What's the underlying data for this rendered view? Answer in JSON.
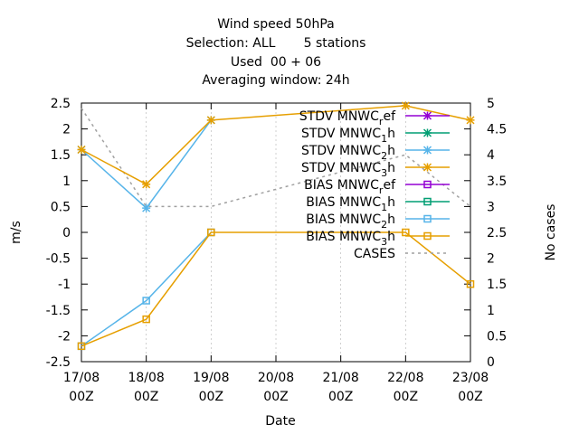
{
  "chart_data": {
    "type": "line",
    "title_lines": [
      "Wind speed 50hPa",
      "Selection: ALL       5 stations",
      "Used  00 + 06",
      "Averaging window: 24h"
    ],
    "xlabel": "Date",
    "ylabel": "m/s",
    "y2label": "No cases",
    "x": [
      [
        "17/08",
        "00Z"
      ],
      [
        "18/08",
        "00Z"
      ],
      [
        "19/08",
        "00Z"
      ],
      [
        "20/08",
        "00Z"
      ],
      [
        "21/08",
        "00Z"
      ],
      [
        "22/08",
        "00Z"
      ],
      [
        "23/08",
        "00Z"
      ]
    ],
    "ylim": [
      -2.5,
      2.5
    ],
    "y2lim": [
      0,
      5
    ],
    "yticks": [
      "-2.5",
      "-2",
      "-1.5",
      "-1",
      "-0.5",
      "0",
      "0.5",
      "1",
      "1.5",
      "2",
      "2.5"
    ],
    "y2ticks": [
      "0",
      "0.5",
      "1",
      "1.5",
      "2",
      "2.5",
      "3",
      "3.5",
      "4",
      "4.5",
      "5"
    ],
    "legend_position": "top-right",
    "series": [
      {
        "name": "STDV MNWC_ref",
        "label_parts": [
          "STDV MNWC",
          "r",
          "ef"
        ],
        "color": "#9400d3",
        "marker": "star",
        "dash": false,
        "axis": "y",
        "points": []
      },
      {
        "name": "STDV MNWC_1h",
        "label_parts": [
          "STDV MNWC",
          "1",
          "h"
        ],
        "color": "#009e73",
        "marker": "star",
        "dash": false,
        "axis": "y",
        "points": []
      },
      {
        "name": "STDV MNWC_2h",
        "label_parts": [
          "STDV MNWC",
          "2",
          "h"
        ],
        "color": "#56b4e9",
        "marker": "star",
        "dash": false,
        "axis": "y",
        "points": [
          [
            0,
            1.6
          ],
          [
            1,
            0.47
          ],
          [
            2,
            2.17
          ]
        ]
      },
      {
        "name": "STDV MNWC_3h",
        "label_parts": [
          "STDV MNWC",
          "3",
          "h"
        ],
        "color": "#e69f00",
        "marker": "star",
        "dash": false,
        "axis": "y",
        "points": [
          [
            0,
            1.6
          ],
          [
            1,
            0.93
          ],
          [
            2,
            2.17
          ],
          [
            5,
            2.45
          ],
          [
            6,
            2.17
          ]
        ]
      },
      {
        "name": "BIAS MNWC_ref",
        "label_parts": [
          "BIAS MNWC",
          "r",
          "ef"
        ],
        "color": "#9400d3",
        "marker": "square",
        "dash": false,
        "axis": "y",
        "points": []
      },
      {
        "name": "BIAS MNWC_1h",
        "label_parts": [
          "BIAS MNWC",
          "1",
          "h"
        ],
        "color": "#009e73",
        "marker": "square",
        "dash": false,
        "axis": "y",
        "points": []
      },
      {
        "name": "BIAS MNWC_2h",
        "label_parts": [
          "BIAS MNWC",
          "2",
          "h"
        ],
        "color": "#56b4e9",
        "marker": "square",
        "dash": false,
        "axis": "y",
        "points": [
          [
            0,
            -2.2
          ],
          [
            1,
            -1.32
          ],
          [
            2,
            0.0
          ]
        ]
      },
      {
        "name": "BIAS MNWC_3h",
        "label_parts": [
          "BIAS MNWC",
          "3",
          "h"
        ],
        "color": "#e69f00",
        "marker": "square",
        "dash": false,
        "axis": "y",
        "points": [
          [
            0,
            -2.2
          ],
          [
            1,
            -1.68
          ],
          [
            2,
            0.0
          ],
          [
            5,
            0.0
          ],
          [
            6,
            -1.0
          ]
        ]
      },
      {
        "name": "CASES",
        "label_parts": [
          "CASES",
          "",
          ""
        ],
        "color": "#a0a0a0",
        "marker": "none",
        "dash": true,
        "axis": "y2",
        "points": [
          [
            0,
            4.9
          ],
          [
            1,
            3.0
          ],
          [
            2,
            3.0
          ],
          [
            5,
            4.0
          ],
          [
            6,
            3.0
          ]
        ]
      }
    ]
  }
}
